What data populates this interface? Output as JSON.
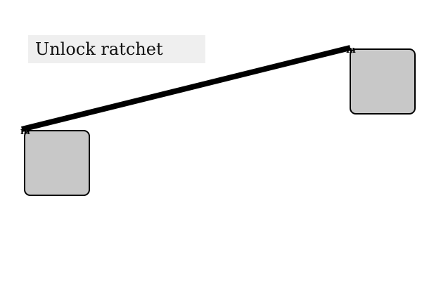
{
  "instruction": {
    "text": "Unlock ratchet"
  },
  "blocks": {
    "left": {
      "anchor_label": "m"
    },
    "right": {
      "anchor_label": "m"
    }
  },
  "connector": {
    "color": "#000000"
  },
  "colors": {
    "block_fill": "#c8c8c8",
    "block_border": "#000000",
    "instruction_background": "#efefef",
    "page_background": "#ffffff"
  }
}
